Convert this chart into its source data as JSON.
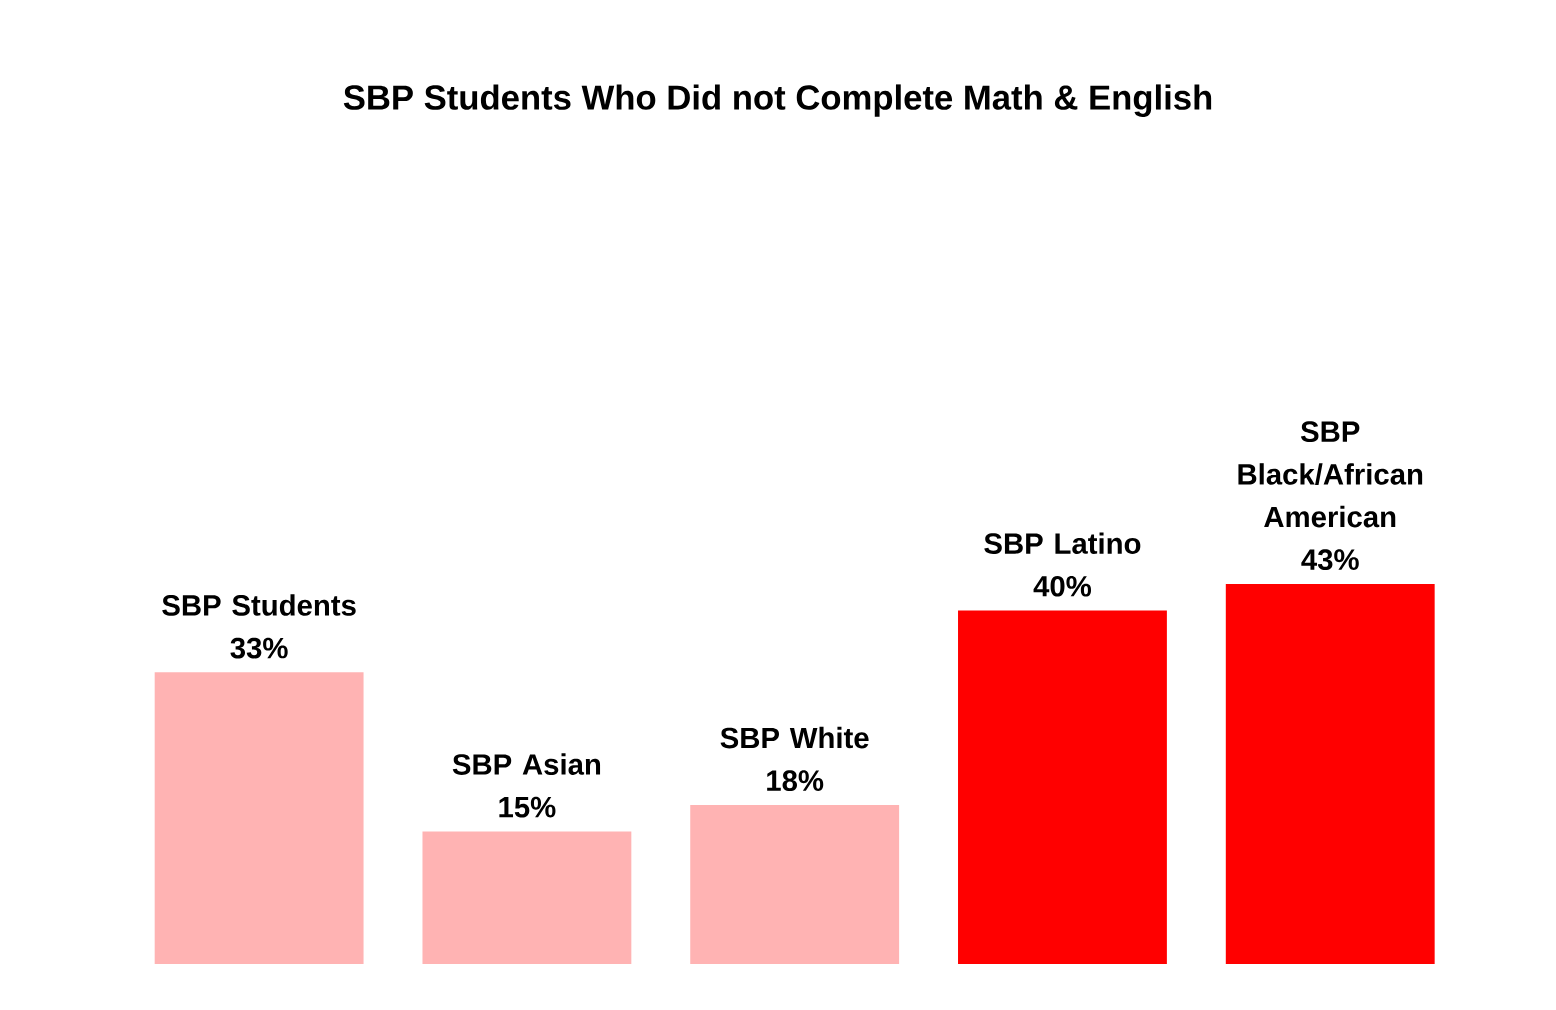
{
  "chart_data": {
    "type": "bar",
    "title": "SBP Students Who Did not Complete Math & English",
    "categories": [
      null,
      null,
      null,
      null,
      null
    ],
    "values": [
      33,
      15,
      18,
      40,
      43
    ],
    "value_labels": [
      "SBP Students 33%",
      "SBP Asian 15%",
      "SBP White 18%",
      "SBP Latino 40%",
      "SBP Black/African American 43%"
    ],
    "colors": [
      "#ffb3b3",
      "#ffb3b3",
      "#ffb3b3",
      "#ff0000",
      "#ff0000"
    ]
  }
}
